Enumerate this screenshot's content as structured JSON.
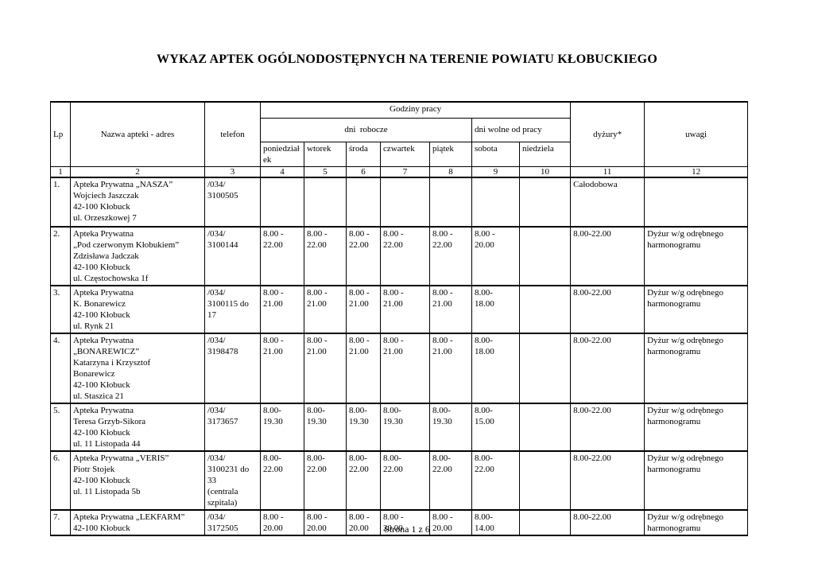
{
  "document": {
    "title": "WYKAZ APTEK OGÓLNODOSTĘPNYCH NA TERENIE POWIATU KŁOBUCKIEGO",
    "footer": "Strona 1 z 6"
  },
  "table": {
    "header": {
      "lp": "Lp",
      "name": "Nazwa apteki - adres",
      "phone": "telefon",
      "hours_group": "Godziny pracy",
      "workdays": "dni  robocze",
      "weekend": "dni wolne od pracy",
      "duty": "dyżury*",
      "notes": "uwagi",
      "days": [
        "poniedziałek",
        "wtorek",
        "środa",
        "czwartek",
        "piątek",
        "sobota",
        "niedziela"
      ]
    },
    "column_numbers": [
      "1",
      "2",
      "3",
      "4",
      "5",
      "6",
      "7",
      "8",
      "9",
      "10",
      "11",
      "12"
    ],
    "rows": [
      {
        "lp": "1.",
        "name": "Apteka Prywatna „NASZA”\nWojciech Jaszczak\n42-100 Kłobuck\nul. Orzeszkowej 7",
        "phone": "/034/\n3100505",
        "hours": [
          "",
          "",
          "",
          "",
          "",
          "",
          ""
        ],
        "duty": "Całodobowa",
        "notes": ""
      },
      {
        "lp": "2.",
        "name": "Apteka Prywatna\n„Pod czerwonym Kłobukiem”\nZdzisława Jadczak\n42-100 Kłobuck\nul. Częstochowska 1f",
        "phone": "/034/\n3100144",
        "hours": [
          "8.00 -\n22.00",
          "8.00 -\n22.00",
          "8.00 -\n22.00",
          "8.00 -\n22.00",
          "8.00 -\n22.00",
          "8.00 -\n20.00",
          ""
        ],
        "duty": "8.00-22.00",
        "notes": "Dyżur w/g odrębnego\nharmonogramu"
      },
      {
        "lp": "3.",
        "name": "Apteka Prywatna\nK. Bonarewicz\n42-100 Kłobuck\nul. Rynk 21",
        "phone": "/034/\n3100115 do\n17",
        "hours": [
          "8.00 -\n21.00",
          "8.00 -\n21.00",
          "8.00 -\n21.00",
          "8.00 -\n21.00",
          "8.00 -\n21.00",
          "8.00-\n18.00",
          ""
        ],
        "duty": "8.00-22.00",
        "notes": "Dyżur w/g odrębnego\nharmonogramu"
      },
      {
        "lp": "4.",
        "name": "Apteka Prywatna\n„BONAREWICZ”\nKatarzyna i Krzysztof\nBonarewicz\n42-100 Kłobuck\nul. Staszica 21",
        "phone": "/034/\n3198478",
        "hours": [
          "8.00 -\n21.00",
          "8.00 -\n21.00",
          "8.00 -\n21.00",
          "8.00 -\n21.00",
          "8.00 -\n21.00",
          "8.00-\n18.00",
          ""
        ],
        "duty": "8.00-22.00",
        "notes": "Dyżur w/g odrębnego\nharmonogramu"
      },
      {
        "lp": "5.",
        "name": "Apteka Prywatna\nTeresa Grzyb-Sikora\n42-100 Kłobuck\nul. 11 Listopada 44",
        "phone": "/034/\n3173657",
        "hours": [
          "8.00-\n19.30",
          "8.00-\n19.30",
          "8.00-\n19.30",
          "8.00-\n19.30",
          "8.00-\n19.30",
          "8.00-\n15.00",
          ""
        ],
        "duty": "8.00-22.00",
        "notes": "Dyżur w/g odrębnego\nharmonogramu"
      },
      {
        "lp": "6.",
        "name": "Apteka Prywatna „VERIS”\nPiotr Stojek\n42-100 Kłobuck\nul. 11 Listopada 5b",
        "phone": "/034/\n3100231 do\n33\n(centrala\nszpitala)",
        "hours": [
          "8.00-\n22.00",
          "8.00-\n22.00",
          "8.00-\n22.00",
          "8.00-\n22.00",
          "8.00-\n22.00",
          "8.00-\n22.00",
          ""
        ],
        "duty": "8.00-22.00",
        "notes": "Dyżur w/g odrębnego\nharmonogramu"
      },
      {
        "lp": "7.",
        "name": "Apteka Prywatna „LEKFARM”\n42-100 Kłobuck",
        "phone": "/034/\n3172505",
        "hours": [
          "8.00 -\n20.00",
          "8.00 -\n20.00",
          "8.00 -\n20.00",
          "8.00 -\n20.00",
          "8.00 -\n20.00",
          "8.00-\n14.00",
          ""
        ],
        "duty": "8.00-22.00",
        "notes": "Dyżur w/g odrębnego\nharmonogramu"
      }
    ]
  }
}
